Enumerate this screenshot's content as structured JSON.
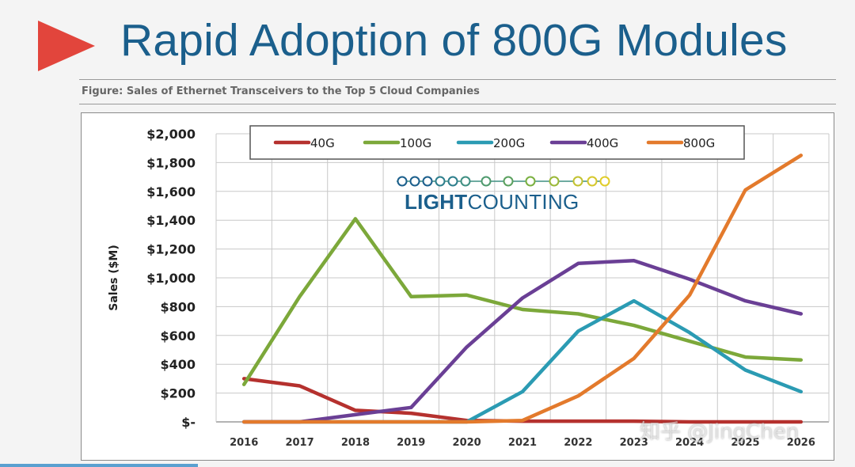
{
  "slide": {
    "title": "Rapid Adoption of 800G Modules",
    "figure_caption": "Figure: Sales of Ethernet Transceivers to the Top 5 Cloud Companies"
  },
  "chart_data": {
    "type": "line",
    "title": "Sales of Ethernet Transceivers to the Top 5 Cloud Companies",
    "xlabel": "",
    "ylabel": "Sales ($M)",
    "x": [
      "2016",
      "2017",
      "2018",
      "2019",
      "2020",
      "2021",
      "2022",
      "2023",
      "2024",
      "2025",
      "2026"
    ],
    "ylim": [
      0,
      2000
    ],
    "yticks": [
      0,
      200,
      400,
      600,
      800,
      1000,
      1200,
      1400,
      1600,
      1800,
      2000
    ],
    "ytick_labels": [
      "$-",
      "$200",
      "$400",
      "$600",
      "$800",
      "$1,000",
      "$1,200",
      "$1,400",
      "$1,600",
      "$1,800",
      "$2,000"
    ],
    "grid": true,
    "legend_position": "top-center",
    "series": [
      {
        "name": "40G",
        "color": "#b5312e",
        "values": [
          300,
          250,
          80,
          60,
          10,
          5,
          5,
          5,
          0,
          0,
          0
        ]
      },
      {
        "name": "100G",
        "color": "#7ca83a",
        "values": [
          260,
          870,
          1410,
          870,
          880,
          780,
          750,
          670,
          560,
          450,
          430
        ]
      },
      {
        "name": "200G",
        "color": "#2b9bb3",
        "values": [
          0,
          0,
          0,
          0,
          0,
          210,
          630,
          840,
          620,
          360,
          210
        ]
      },
      {
        "name": "400G",
        "color": "#6a3f95",
        "values": [
          0,
          0,
          50,
          100,
          520,
          860,
          1100,
          1120,
          990,
          840,
          750
        ]
      },
      {
        "name": "800G",
        "color": "#e37a2c",
        "values": [
          0,
          0,
          0,
          0,
          0,
          10,
          180,
          440,
          880,
          1610,
          1850
        ]
      }
    ],
    "logo_text": "LIGHTCOUNTING"
  },
  "watermark": "知乎 @JingChen"
}
